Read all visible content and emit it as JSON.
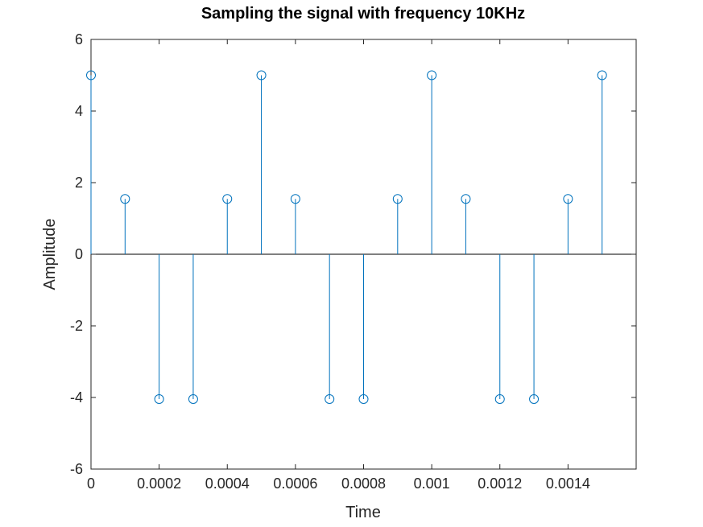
{
  "chart_data": {
    "type": "stem",
    "title": "Sampling the signal with frequency 10KHz",
    "xlabel": "Time",
    "ylabel": "Amplitude",
    "xlim": [
      0,
      0.0016
    ],
    "ylim": [
      -6,
      6
    ],
    "xticks": [
      0,
      0.0002,
      0.0004,
      0.0006,
      0.0008,
      0.001,
      0.0012,
      0.0014
    ],
    "xtick_labels": [
      "0",
      "0.0002",
      "0.0004",
      "0.0006",
      "0.0008",
      "0.001",
      "0.0012",
      "0.0014"
    ],
    "yticks": [
      -6,
      -4,
      -2,
      0,
      2,
      4,
      6
    ],
    "ytick_labels": [
      "-6",
      "-4",
      "-2",
      "0",
      "2",
      "4",
      "6"
    ],
    "grid": false,
    "baseline": 0,
    "series": [
      {
        "color": "#0072bd",
        "marker": "circle-open",
        "x": [
          0,
          0.0001,
          0.0002,
          0.0003,
          0.0004,
          0.0005,
          0.0006,
          0.0007,
          0.0008,
          0.0009,
          0.001,
          0.0011,
          0.0012,
          0.0013,
          0.0014,
          0.0015
        ],
        "y": [
          5,
          1.545,
          -4.045,
          -4.045,
          1.545,
          5,
          1.545,
          -4.045,
          -4.045,
          1.545,
          5,
          1.545,
          -4.045,
          -4.045,
          1.545,
          5
        ]
      }
    ]
  }
}
